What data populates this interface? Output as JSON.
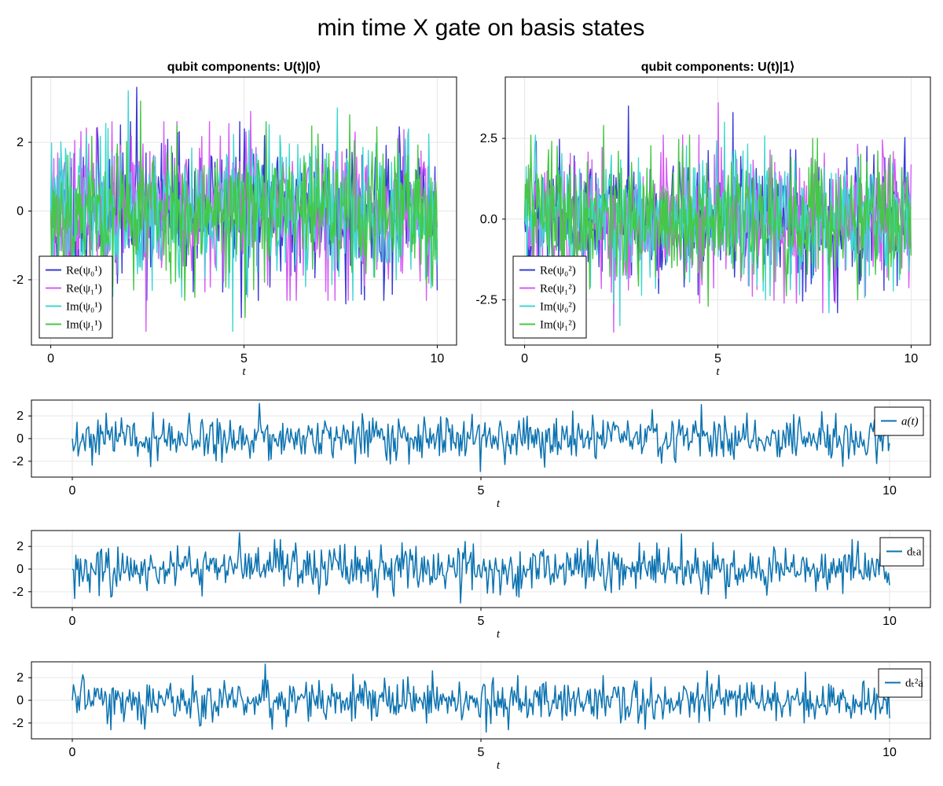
{
  "figure_title": "min time X gate on basis states",
  "chart_data": [
    {
      "type": "line",
      "title": "qubit components: U(t)|0⟩",
      "xlabel": "t",
      "ylabel": "",
      "xlim": [
        -0.5,
        10.5
      ],
      "ylim": [
        -3.9,
        3.9
      ],
      "xticks": [
        0,
        5,
        10
      ],
      "yticks": [
        -2,
        0,
        2
      ],
      "grid": true,
      "legend_position": "bottom-left",
      "x_range": [
        0,
        10
      ],
      "series": [
        {
          "name": "Re(ψ₀¹)",
          "color": "#3a3ad6",
          "seed": 11,
          "scale": 1.05,
          "spikes": [
            3.6,
            -3.1,
            -2.7
          ]
        },
        {
          "name": "Re(ψ₁¹)",
          "color": "#d45cf5",
          "seed": 23,
          "scale": 1.05,
          "spikes": [
            -3.5,
            2.9,
            2.3
          ]
        },
        {
          "name": "Im(ψ₀¹)",
          "color": "#3fd6d1",
          "seed": 37,
          "scale": 1.05,
          "spikes": [
            3.5,
            -3.5,
            3.0
          ]
        },
        {
          "name": "Im(ψ₁¹)",
          "color": "#45c845",
          "seed": 53,
          "scale": 1.0,
          "spikes": [
            3.2,
            -3.1,
            2.8
          ]
        }
      ]
    },
    {
      "type": "line",
      "title": "qubit components: U(t)|1⟩",
      "xlabel": "t",
      "ylabel": "",
      "xlim": [
        -0.5,
        10.5
      ],
      "ylim": [
        -3.9,
        4.4
      ],
      "xticks": [
        0,
        5,
        10
      ],
      "yticks": [
        -2.5,
        0.0,
        2.5
      ],
      "ytick_labels": [
        "-2.5",
        "0.0",
        "2.5"
      ],
      "grid": true,
      "legend_position": "bottom-left",
      "x_range": [
        0,
        10
      ],
      "series": [
        {
          "name": "Re(ψ₀²)",
          "color": "#3a3ad6",
          "seed": 71,
          "scale": 1.05,
          "spikes": [
            3.5,
            3.3,
            -2.9
          ]
        },
        {
          "name": "Re(ψ₁²)",
          "color": "#d45cf5",
          "seed": 89,
          "scale": 1.05,
          "spikes": [
            -3.5,
            3.6,
            -2.9
          ]
        },
        {
          "name": "Im(ψ₀²)",
          "color": "#3fd6d1",
          "seed": 97,
          "scale": 1.05,
          "spikes": [
            -3.3,
            3.0,
            -2.9
          ]
        },
        {
          "name": "Im(ψ₁²)",
          "color": "#45c845",
          "seed": 113,
          "scale": 1.0,
          "spikes": [
            2.9,
            -2.7,
            2.5
          ]
        }
      ]
    },
    {
      "type": "line",
      "title": "",
      "xlabel": "t",
      "ylabel": "",
      "xlim": [
        -0.5,
        10.5
      ],
      "ylim": [
        -3.4,
        3.4
      ],
      "xticks": [
        0,
        5,
        10
      ],
      "yticks": [
        -2,
        0,
        2
      ],
      "grid": true,
      "legend_position": "right",
      "x_range": [
        0,
        10
      ],
      "series": [
        {
          "name": "a(t)",
          "color": "#0b72b0",
          "seed": 131,
          "scale": 0.95,
          "spikes": [
            3.1,
            -2.9,
            3.0
          ]
        }
      ]
    },
    {
      "type": "line",
      "title": "",
      "xlabel": "t",
      "ylabel": "",
      "xlim": [
        -0.5,
        10.5
      ],
      "ylim": [
        -3.4,
        3.4
      ],
      "xticks": [
        0,
        5,
        10
      ],
      "yticks": [
        -2,
        0,
        2
      ],
      "grid": true,
      "legend_position": "right",
      "x_range": [
        0,
        10
      ],
      "series": [
        {
          "name": "dₜa",
          "color": "#0b72b0",
          "seed": 151,
          "scale": 0.95,
          "spikes": [
            3.2,
            -3.0,
            3.1
          ]
        }
      ]
    },
    {
      "type": "line",
      "title": "",
      "xlabel": "t",
      "ylabel": "",
      "xlim": [
        -0.5,
        10.5
      ],
      "ylim": [
        -3.4,
        3.4
      ],
      "xticks": [
        0,
        5,
        10
      ],
      "yticks": [
        -2,
        0,
        2
      ],
      "grid": true,
      "legend_position": "right",
      "x_range": [
        0,
        10
      ],
      "series": [
        {
          "name": "dₜ²a",
          "color": "#0b72b0",
          "seed": 173,
          "scale": 0.95,
          "spikes": [
            3.2,
            -2.8,
            2.6
          ]
        }
      ]
    }
  ]
}
